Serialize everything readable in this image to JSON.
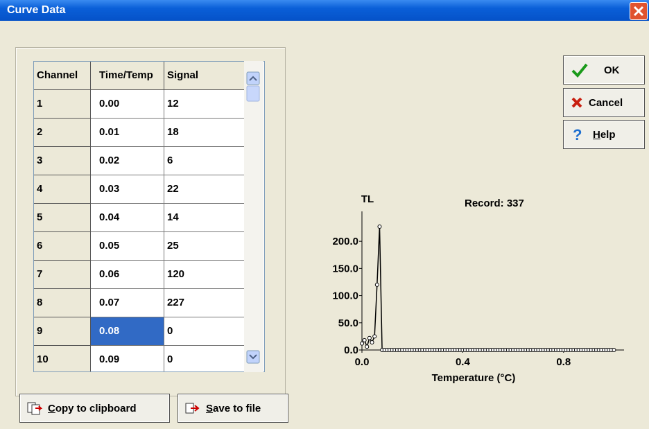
{
  "window": {
    "title": "Curve Data"
  },
  "table": {
    "columns": [
      "Channel",
      "Time/Temp",
      "Signal"
    ],
    "rows": [
      [
        "1",
        "0.00",
        "12"
      ],
      [
        "2",
        "0.01",
        "18"
      ],
      [
        "3",
        "0.02",
        "6"
      ],
      [
        "4",
        "0.03",
        "22"
      ],
      [
        "5",
        "0.04",
        "14"
      ],
      [
        "6",
        "0.05",
        "25"
      ],
      [
        "7",
        "0.06",
        "120"
      ],
      [
        "8",
        "0.07",
        "227"
      ],
      [
        "9",
        "0.08",
        "0"
      ],
      [
        "10",
        "0.09",
        "0"
      ]
    ]
  },
  "buttons": {
    "ok": "OK",
    "cancel": "Cancel",
    "help": "Help",
    "copy": "Copy to clipboard",
    "save": "Save to file"
  },
  "chart": {
    "type": "line",
    "y_label": "TL",
    "annotation": "Record: 337",
    "x_label": "Temperature (°C)",
    "color": "#000000",
    "x": [
      0,
      0.01,
      0.02,
      0.03,
      0.04,
      0.05,
      0.06,
      0.07,
      0.08,
      0.09,
      0.1,
      0.11,
      0.12,
      0.13,
      0.14,
      0.15,
      0.16,
      0.17,
      0.18,
      0.19,
      0.2,
      0.21,
      0.22,
      0.23,
      0.24,
      0.25,
      0.26,
      0.27,
      0.28,
      0.29,
      0.3,
      0.31,
      0.32,
      0.33,
      0.34,
      0.35,
      0.36,
      0.37,
      0.38,
      0.39,
      0.4,
      0.41,
      0.42,
      0.43,
      0.44,
      0.45,
      0.46,
      0.47,
      0.48,
      0.49,
      0.5,
      0.51,
      0.52,
      0.53,
      0.54,
      0.55,
      0.56,
      0.57,
      0.58,
      0.59,
      0.6,
      0.61,
      0.62,
      0.63,
      0.64,
      0.65,
      0.66,
      0.67,
      0.68,
      0.69,
      0.7,
      0.71,
      0.72,
      0.73,
      0.74,
      0.75,
      0.76,
      0.77,
      0.78,
      0.79,
      0.8,
      0.81,
      0.82,
      0.83,
      0.84,
      0.85,
      0.86,
      0.87,
      0.88,
      0.89,
      0.9,
      0.91,
      0.92,
      0.93,
      0.94,
      0.95,
      0.96,
      0.97,
      0.98,
      0.99,
      1
    ],
    "values": [
      12,
      18,
      6,
      22,
      14,
      25,
      120,
      227,
      0,
      0,
      0,
      0,
      0,
      0,
      0,
      0,
      0,
      0,
      0,
      0,
      0,
      0,
      0,
      0,
      0,
      0,
      0,
      0,
      0,
      0,
      0,
      0,
      0,
      0,
      0,
      0,
      0,
      0,
      0,
      0,
      0,
      0,
      0,
      0,
      0,
      0,
      0,
      0,
      0,
      0,
      0,
      0,
      0,
      0,
      0,
      0,
      0,
      0,
      0,
      0,
      0,
      0,
      0,
      0,
      0,
      0,
      0,
      0,
      0,
      0,
      0,
      0,
      0,
      0,
      0,
      0,
      0,
      0,
      0,
      0,
      0,
      0,
      0,
      0,
      0,
      0,
      0,
      0,
      0,
      0,
      0,
      0,
      0,
      0,
      0,
      0,
      0,
      0,
      0,
      0,
      0
    ],
    "xlim": [
      0,
      1.04
    ],
    "ylim": [
      0,
      255
    ],
    "xticks": [
      {
        "value": 0,
        "label": "0.0"
      },
      0.4,
      0.8
    ],
    "yticks": [
      {
        "value": 0,
        "label": "0.0"
      },
      {
        "value": 50,
        "label": "50.0"
      },
      {
        "value": 100,
        "label": "100.0"
      },
      {
        "value": 150,
        "label": "150.0"
      },
      {
        "value": 200,
        "label": "200.0"
      }
    ]
  }
}
